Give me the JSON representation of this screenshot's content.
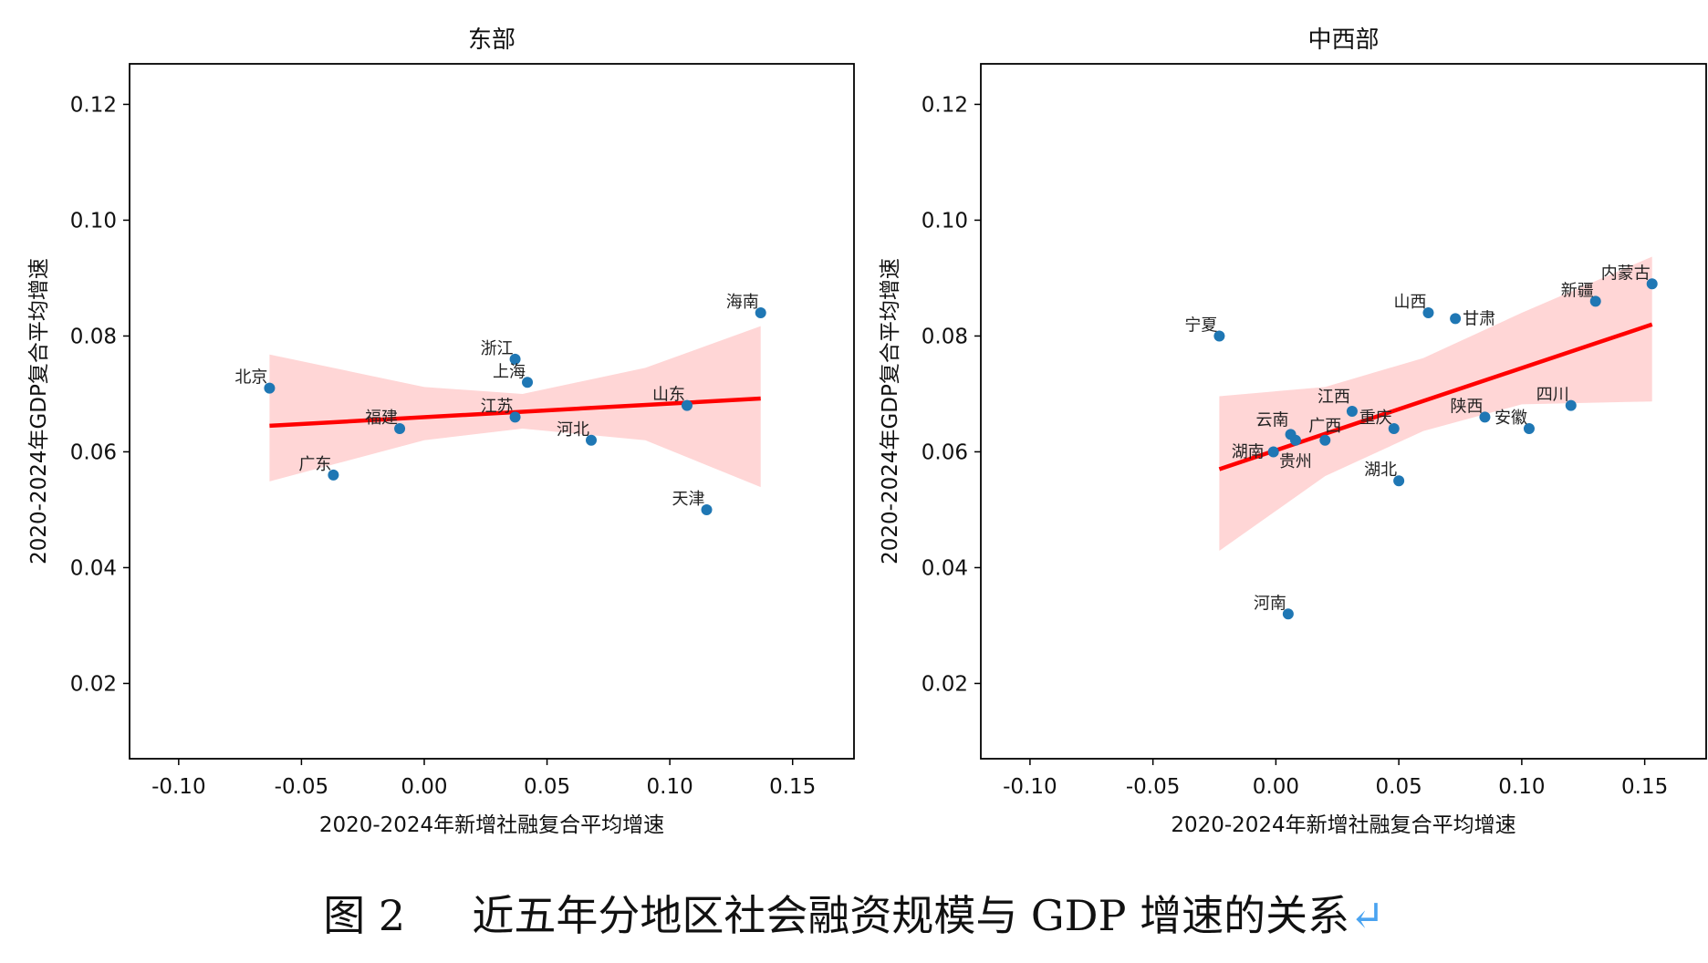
{
  "chart_data": [
    {
      "type": "scatter",
      "title": "东部",
      "xlabel": "2020-2024年新增社融复合平均增速",
      "ylabel": "2020-2024年GDP复合平均增速",
      "xlim": [
        -0.12,
        0.175
      ],
      "ylim": [
        0.007,
        0.127
      ],
      "xticks": [
        "-0.10",
        "-0.05",
        "0.00",
        "0.05",
        "0.10",
        "0.15"
      ],
      "yticks": [
        "0.02",
        "0.04",
        "0.06",
        "0.08",
        "0.10",
        "0.12"
      ],
      "grid": false,
      "point_color": "#1f77b4",
      "fit_color": "#ff0000",
      "points": [
        {
          "label": "北京",
          "x": -0.063,
          "y": 0.071
        },
        {
          "label": "广东",
          "x": -0.037,
          "y": 0.056
        },
        {
          "label": "福建",
          "x": -0.01,
          "y": 0.064
        },
        {
          "label": "浙江",
          "x": 0.037,
          "y": 0.076
        },
        {
          "label": "上海",
          "x": 0.042,
          "y": 0.072
        },
        {
          "label": "江苏",
          "x": 0.037,
          "y": 0.066
        },
        {
          "label": "河北",
          "x": 0.068,
          "y": 0.062
        },
        {
          "label": "山东",
          "x": 0.107,
          "y": 0.068
        },
        {
          "label": "天津",
          "x": 0.115,
          "y": 0.05
        },
        {
          "label": "海南",
          "x": 0.137,
          "y": 0.084
        }
      ],
      "fit_line": [
        [
          -0.063,
          0.0645
        ],
        [
          0.137,
          0.0692
        ]
      ],
      "ci_band": [
        [
          -0.063,
          0.0549,
          0.0768
        ],
        [
          0.0,
          0.062,
          0.0712
        ],
        [
          0.04,
          0.064,
          0.07
        ],
        [
          0.09,
          0.062,
          0.0745
        ],
        [
          0.137,
          0.0539,
          0.0817
        ]
      ]
    },
    {
      "type": "scatter",
      "title": "中西部",
      "xlabel": "2020-2024年新增社融复合平均增速",
      "ylabel": "2020-2024年GDP复合平均增速",
      "xlim": [
        -0.12,
        0.175
      ],
      "ylim": [
        0.007,
        0.127
      ],
      "xticks": [
        "-0.10",
        "-0.05",
        "0.00",
        "0.05",
        "0.10",
        "0.15"
      ],
      "yticks": [
        "0.02",
        "0.04",
        "0.06",
        "0.08",
        "0.10",
        "0.12"
      ],
      "grid": false,
      "point_color": "#1f77b4",
      "fit_color": "#ff0000",
      "points": [
        {
          "label": "宁夏",
          "x": -0.023,
          "y": 0.08
        },
        {
          "label": "山西",
          "x": 0.062,
          "y": 0.084
        },
        {
          "label": "甘肃",
          "x": 0.073,
          "y": 0.083
        },
        {
          "label": "新疆",
          "x": 0.13,
          "y": 0.086
        },
        {
          "label": "内蒙古",
          "x": 0.153,
          "y": 0.089
        },
        {
          "label": "江西",
          "x": 0.031,
          "y": 0.067
        },
        {
          "label": "重庆",
          "x": 0.048,
          "y": 0.064
        },
        {
          "label": "陕西",
          "x": 0.085,
          "y": 0.066
        },
        {
          "label": "安徽",
          "x": 0.103,
          "y": 0.064
        },
        {
          "label": "四川",
          "x": 0.12,
          "y": 0.068
        },
        {
          "label": "云南",
          "x": 0.006,
          "y": 0.063
        },
        {
          "label": "贵州",
          "x": 0.008,
          "y": 0.062
        },
        {
          "label": "广西",
          "x": 0.02,
          "y": 0.062
        },
        {
          "label": "湖南",
          "x": -0.001,
          "y": 0.06
        },
        {
          "label": "湖北",
          "x": 0.05,
          "y": 0.055
        },
        {
          "label": "河南",
          "x": 0.005,
          "y": 0.032
        }
      ],
      "fit_line": [
        [
          -0.023,
          0.057
        ],
        [
          0.153,
          0.082
        ]
      ],
      "ci_band": [
        [
          -0.023,
          0.0429,
          0.0696
        ],
        [
          0.02,
          0.0558,
          0.0712
        ],
        [
          0.06,
          0.0636,
          0.0762
        ],
        [
          0.1,
          0.0682,
          0.084
        ],
        [
          0.153,
          0.0687,
          0.0937
        ]
      ]
    }
  ],
  "caption": {
    "figure_number": "图 2",
    "text": "近五年分地区社会融资规模与 GDP 增速的关系",
    "return_mark": "↵"
  }
}
